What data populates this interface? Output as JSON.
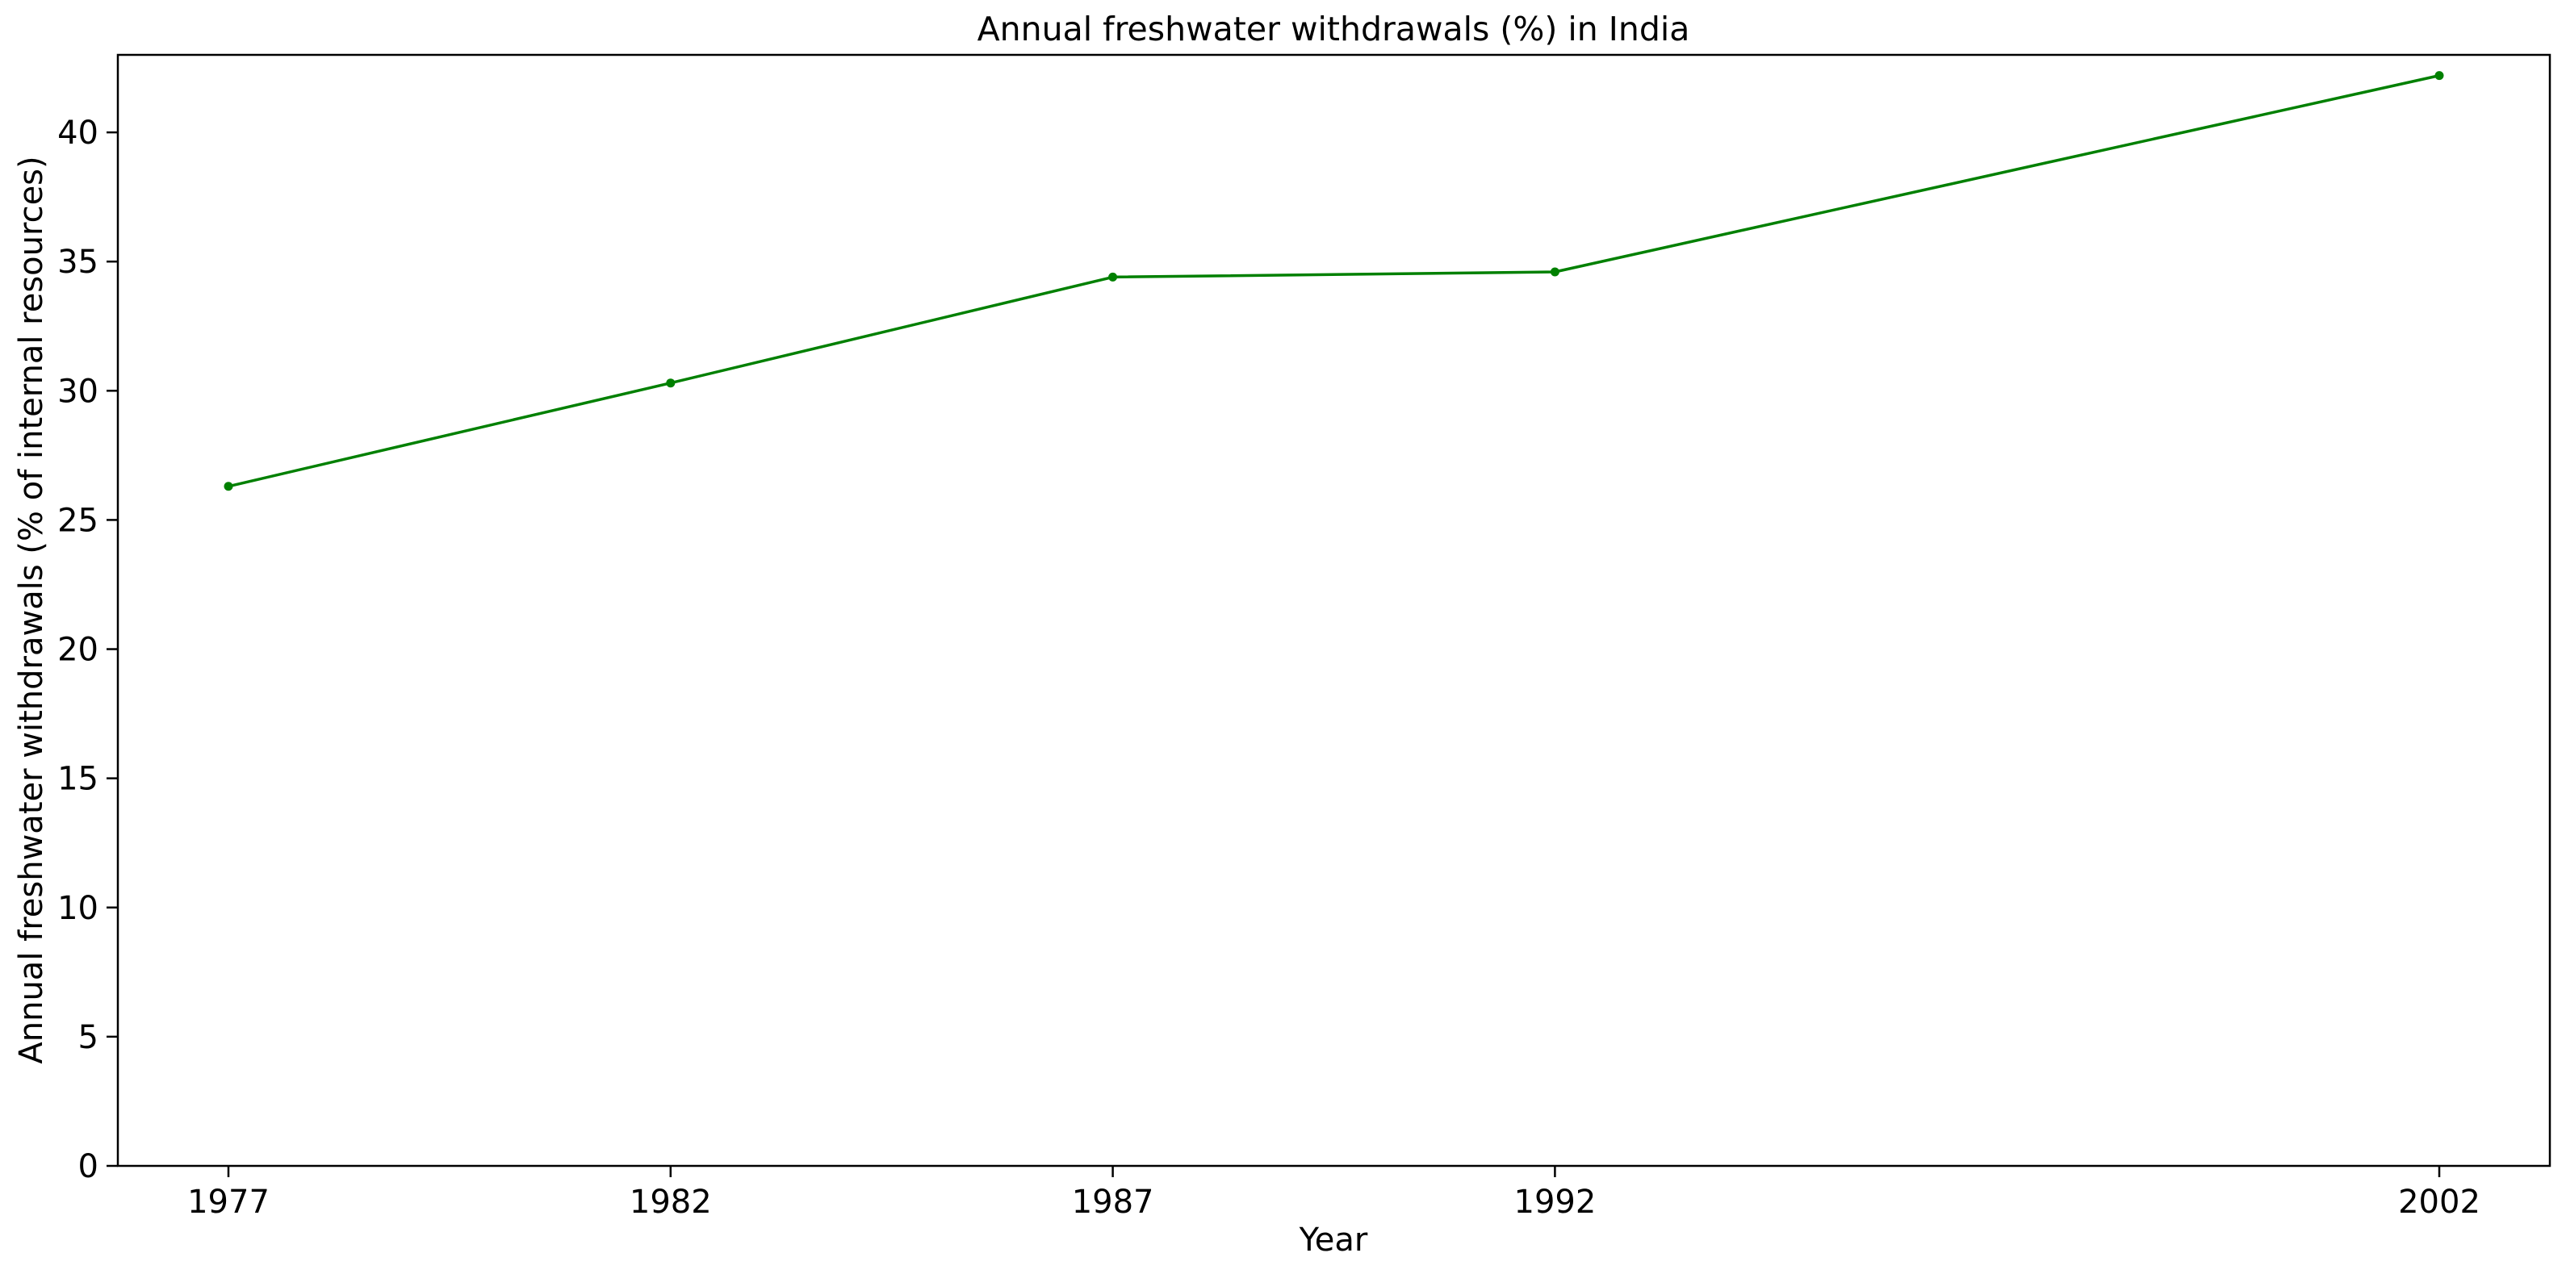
{
  "chart_data": {
    "type": "line",
    "title": "Annual freshwater withdrawals (%) in India",
    "xlabel": "Year",
    "ylabel": "Annual freshwater withdrawals (% of internal resources)",
    "x": [
      "1977",
      "1982",
      "1987",
      "1992",
      "2002"
    ],
    "y_ticks": [
      "0",
      "5",
      "10",
      "15",
      "20",
      "25",
      "30",
      "35",
      "40"
    ],
    "ylim": [
      0,
      43
    ],
    "grid": false,
    "series": [
      {
        "values": [
          26.3,
          30.3,
          34.4,
          34.6,
          42.2
        ],
        "color": "#008000"
      }
    ]
  }
}
